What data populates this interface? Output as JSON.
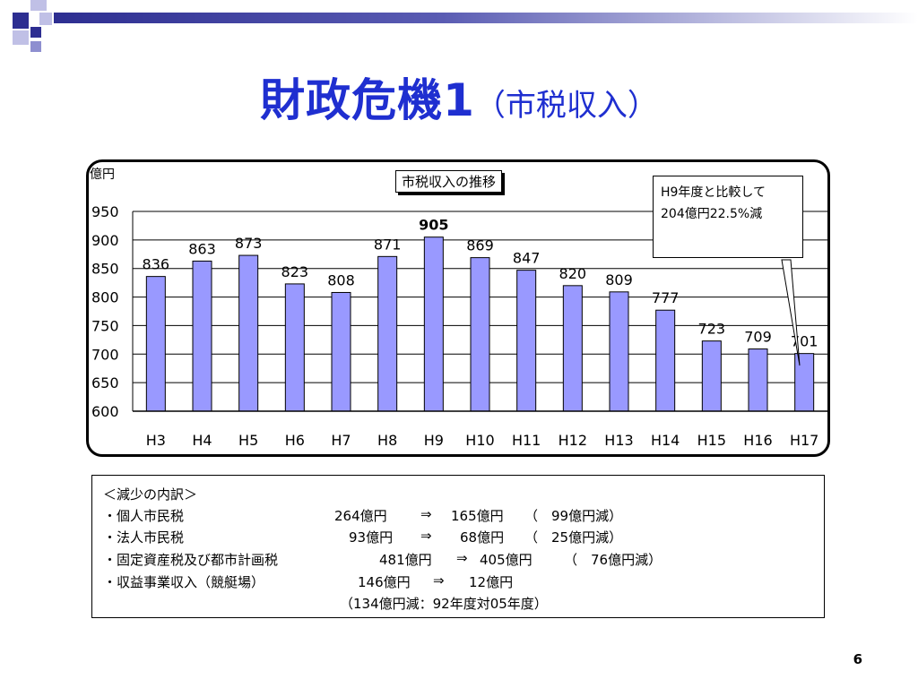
{
  "slide": {
    "title_main": "財政危機1",
    "title_sub": "（市税収入）",
    "page_number": "6"
  },
  "chart_data": {
    "type": "bar",
    "title": "市税収入の推移",
    "ylabel": "億円",
    "categories": [
      "H3",
      "H4",
      "H5",
      "H6",
      "H7",
      "H8",
      "H9",
      "H10",
      "H11",
      "H12",
      "H13",
      "H14",
      "H15",
      "H16",
      "H17"
    ],
    "values": [
      836,
      863,
      873,
      823,
      808,
      871,
      905,
      869,
      847,
      820,
      809,
      777,
      723,
      709,
      701
    ],
    "data_labels": [
      "836",
      "863",
      "873",
      "823",
      "808",
      "871",
      "905",
      "869",
      "847",
      "820",
      "809",
      "777",
      "723",
      "709",
      "701"
    ],
    "ylim": [
      600,
      950
    ],
    "yticks": [
      "950",
      "900",
      "850",
      "800",
      "750",
      "700",
      "650",
      "600"
    ],
    "bar_color": "#9999ff",
    "annotation": {
      "line1": "H9年度と比較して",
      "line2": "204億円22.5%減"
    }
  },
  "details": {
    "heading": "＜減少の内訳＞",
    "rows": [
      {
        "name": "・個人市民税",
        "from": "264億円",
        "arrow": "⇒",
        "to": "165億円",
        "diff": "（　99億円減）"
      },
      {
        "name": "・法人市民税",
        "from": "93億円",
        "arrow": "⇒",
        "to": "68億円",
        "diff": "（　25億円減）"
      },
      {
        "name": "・固定資産税及び都市計画税",
        "from": "481億円",
        "arrow": "⇒",
        "to": "405億円",
        "diff": "（　76億円減）"
      },
      {
        "name": "・収益事業収入（競艇場）",
        "from": "146億円",
        "arrow": "⇒",
        "to": "12億円",
        "diff": ""
      }
    ],
    "note": "（134億円減：92年度対05年度）"
  }
}
